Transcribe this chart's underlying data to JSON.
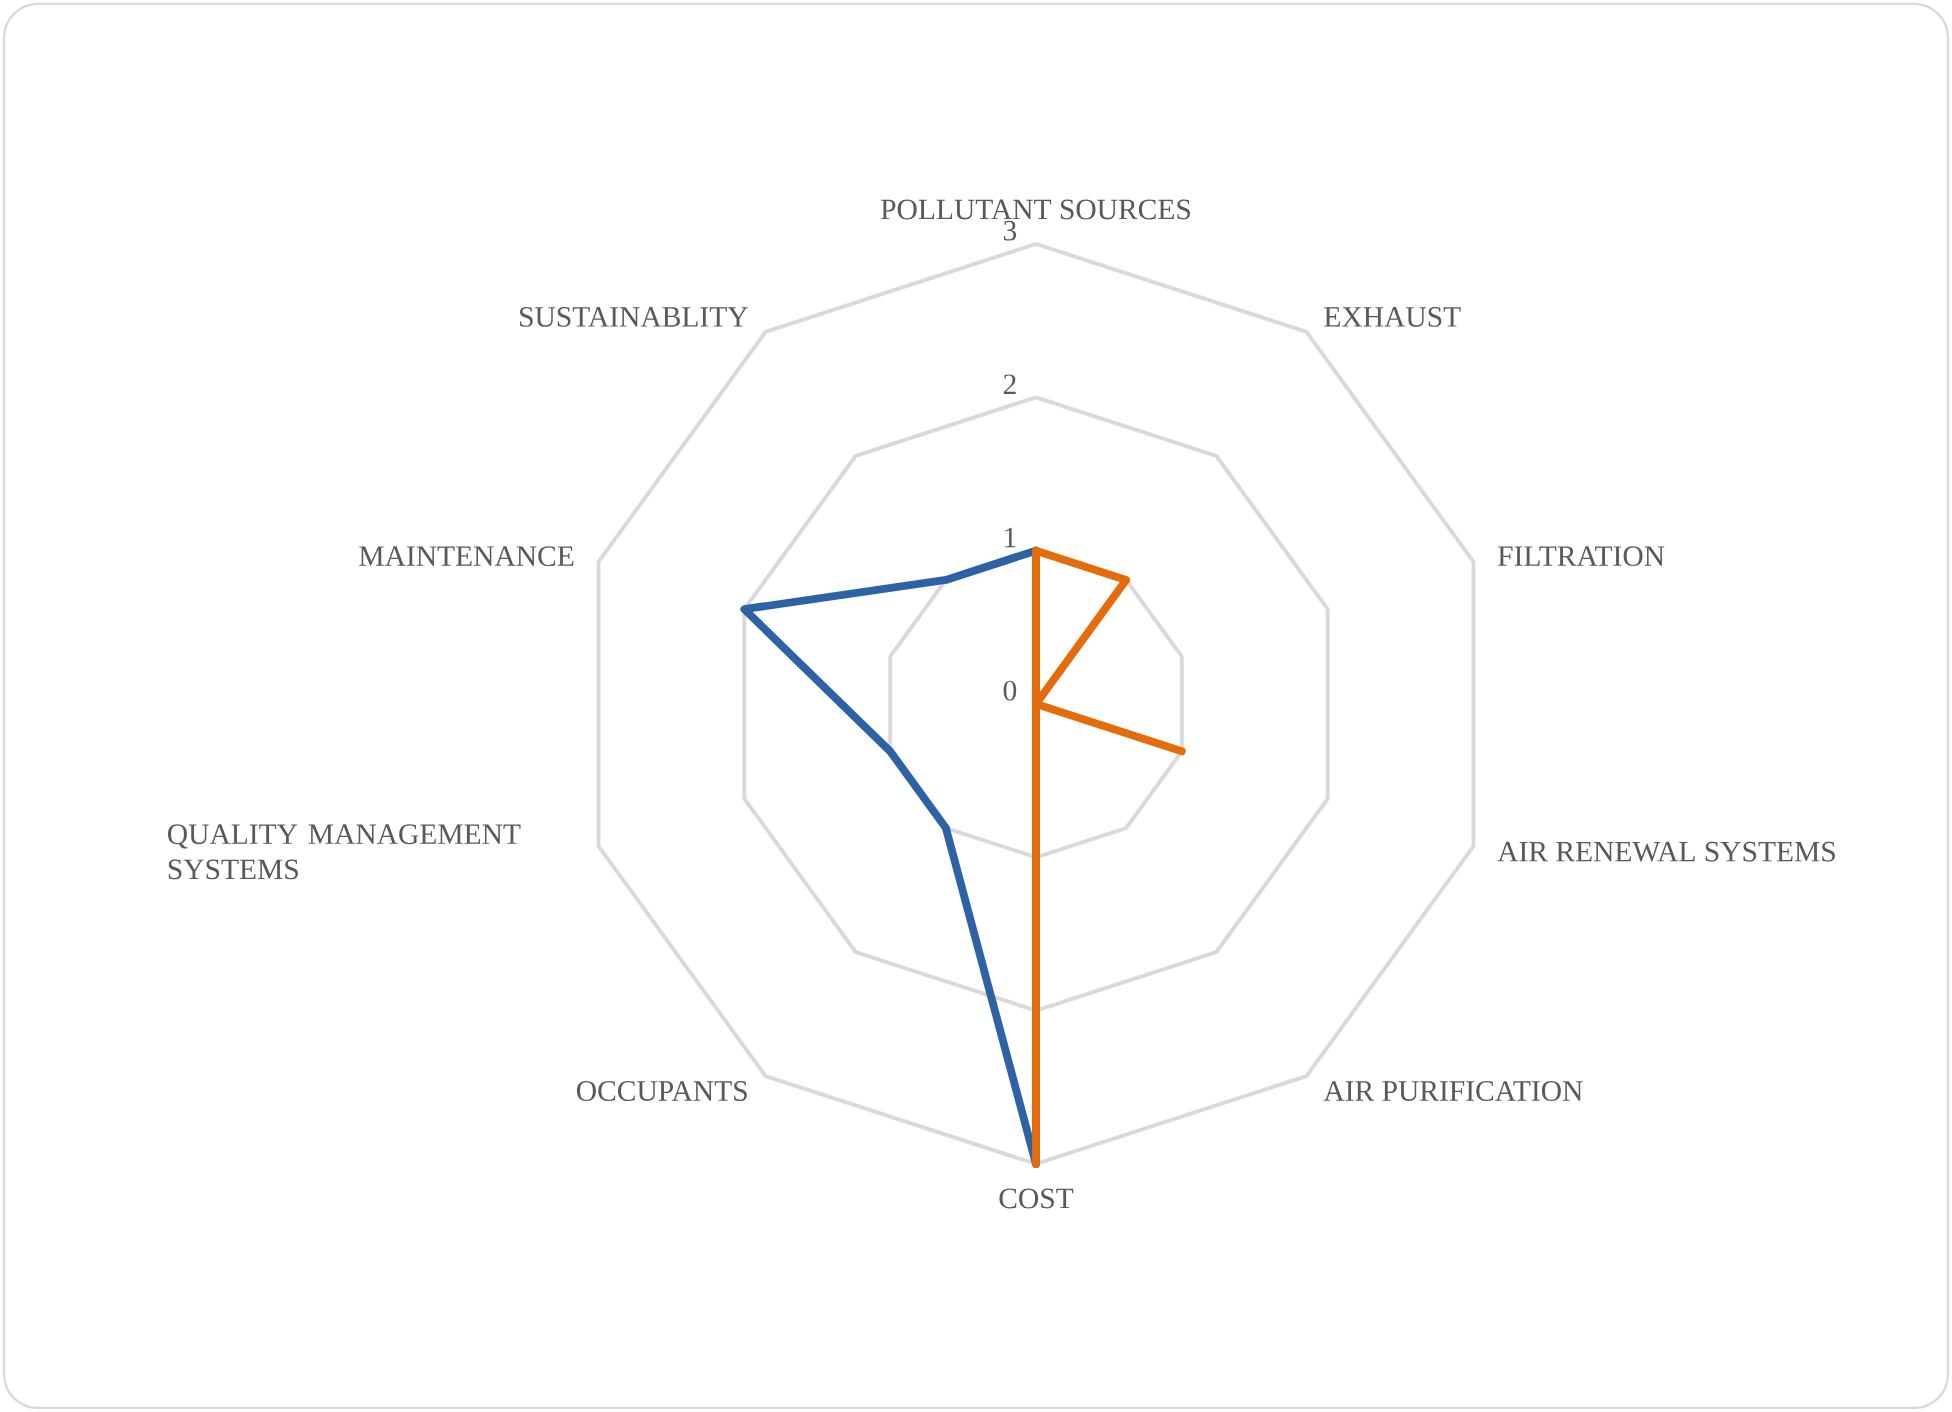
{
  "chart_data": {
    "type": "radar",
    "categories": [
      "POLLUTANT SOURCES",
      "EXHAUST",
      "FILTRATION",
      "AIR RENEWAL SYSTEMS",
      "AIR PURIFICATION",
      "COST",
      "OCCUPANTS",
      "QUALITY MANAGEMENT SYSTEMS",
      "MAINTENANCE",
      "SUSTAINABLITY"
    ],
    "series": [
      {
        "color": "#2e62a6",
        "values": [
          1,
          null,
          null,
          null,
          null,
          3,
          1,
          1,
          2,
          1
        ]
      },
      {
        "color": "#e46c0a",
        "values": [
          1,
          1,
          0,
          1,
          0,
          3,
          0,
          0,
          0,
          0
        ]
      }
    ],
    "ylim": [
      0,
      3
    ],
    "yticks": [
      0,
      1,
      2,
      3
    ],
    "grid": true
  }
}
